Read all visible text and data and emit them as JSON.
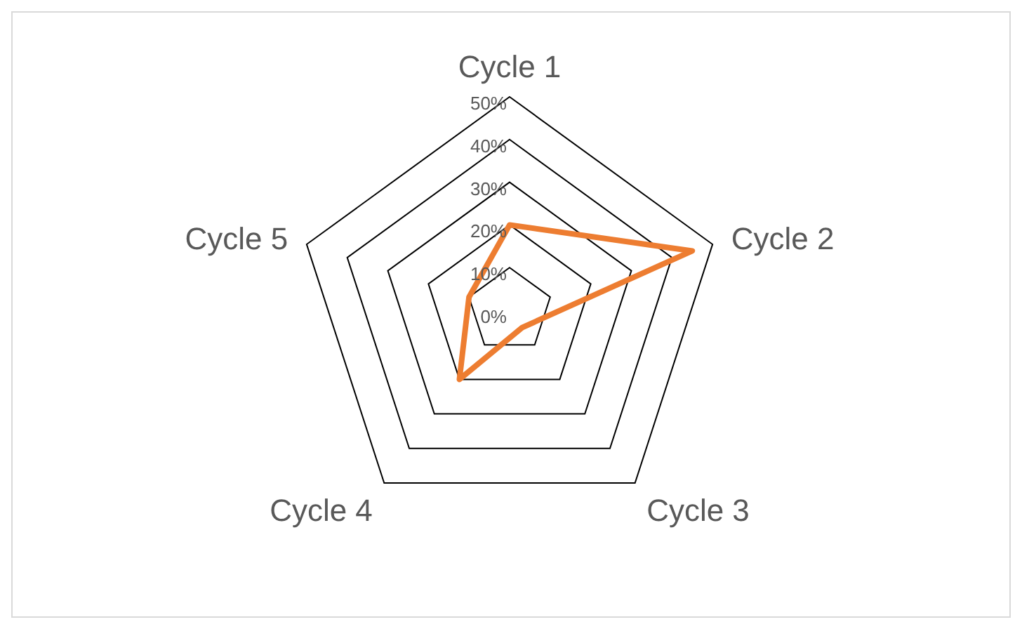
{
  "chart_data": {
    "type": "radar",
    "categories": [
      "Cycle 1",
      "Cycle 2",
      "Cycle 3",
      "Cycle 4",
      "Cycle 5"
    ],
    "series": [
      {
        "color": "#ed7d31",
        "values": [
          20,
          45,
          5,
          20,
          10
        ]
      }
    ],
    "ylim": [
      0,
      50
    ],
    "yticks": [
      {
        "value": 0,
        "label": "0%"
      },
      {
        "value": 10,
        "label": "10%"
      },
      {
        "value": 20,
        "label": "20%"
      },
      {
        "value": 30,
        "label": "30%"
      },
      {
        "value": 40,
        "label": "40%"
      },
      {
        "value": 50,
        "label": "50%"
      }
    ],
    "grid": true,
    "legend": false,
    "marker": "none",
    "line_style": "solid"
  }
}
